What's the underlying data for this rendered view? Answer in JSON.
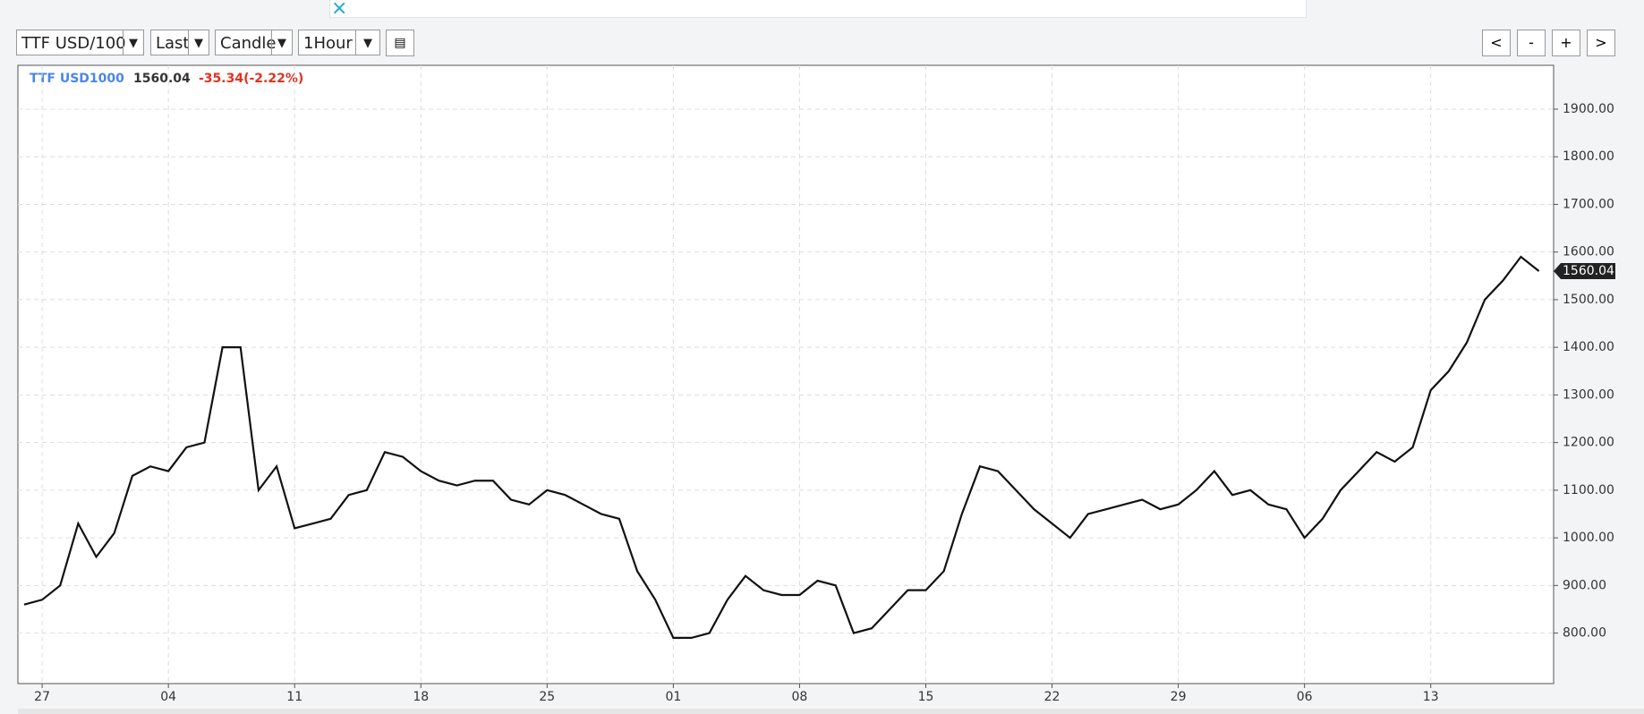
{
  "toolbar": {
    "symbol": "TTF USD/100",
    "price_field": "Last",
    "chart_style": "Candle",
    "interval": "1Hour",
    "nav": [
      "<",
      "-",
      "+",
      ">"
    ]
  },
  "chart_data": {
    "type": "line",
    "symbol": "TTF USD1000",
    "last": 1560.04,
    "change": "-35.34(-2.22%)",
    "color": "#111111",
    "categories": [
      null,
      "27",
      null,
      null,
      null,
      null,
      null,
      null,
      "04",
      null,
      null,
      null,
      null,
      null,
      null,
      "11",
      null,
      null,
      null,
      null,
      null,
      null,
      "18",
      null,
      null,
      null,
      null,
      null,
      null,
      "25",
      null,
      null,
      null,
      null,
      null,
      null,
      "01",
      null,
      null,
      null,
      null,
      null,
      null,
      "08",
      null,
      null,
      null,
      null,
      null,
      null,
      "15",
      null,
      null,
      null,
      null,
      null,
      null,
      "22",
      null,
      null,
      null,
      null,
      null,
      null,
      "29",
      null,
      null,
      null,
      null,
      null,
      null,
      "06",
      null,
      null,
      null,
      null,
      null,
      null,
      "13",
      null,
      null,
      null,
      null,
      null,
      null
    ],
    "values": [
      860,
      870,
      900,
      1030,
      960,
      1010,
      1130,
      1150,
      1140,
      1190,
      1200,
      1400,
      1400,
      1100,
      1150,
      1020,
      1030,
      1040,
      1090,
      1100,
      1180,
      1170,
      1140,
      1120,
      1110,
      1120,
      1120,
      1080,
      1070,
      1100,
      1090,
      1070,
      1050,
      1040,
      930,
      870,
      790,
      790,
      800,
      870,
      920,
      890,
      880,
      880,
      910,
      900,
      800,
      810,
      850,
      890,
      890,
      930,
      1050,
      1150,
      1140,
      1100,
      1060,
      1030,
      1000,
      1050,
      1060,
      1070,
      1080,
      1060,
      1070,
      1100,
      1140,
      1090,
      1100,
      1070,
      1060,
      1000,
      1040,
      1100,
      1140,
      1180,
      1160,
      1190,
      1310,
      1350,
      1410,
      1500,
      1540,
      1590,
      1560.04
    ],
    "ylim": [
      694,
      1992
    ],
    "yticks": [
      {
        "value": 800,
        "label": "800.00"
      },
      {
        "value": 900,
        "label": "900.00"
      },
      {
        "value": 1000,
        "label": "1000.00"
      },
      {
        "value": 1100,
        "label": "1100.00"
      },
      {
        "value": 1200,
        "label": "1200.00"
      },
      {
        "value": 1300,
        "label": "1300.00"
      },
      {
        "value": 1400,
        "label": "1400.00"
      },
      {
        "value": 1500,
        "label": "1500.00"
      },
      {
        "value": 1600,
        "label": "1600.00"
      },
      {
        "value": 1700,
        "label": "1700.00"
      },
      {
        "value": 1800,
        "label": "1800.00"
      },
      {
        "value": 1900,
        "label": "1900.00"
      }
    ],
    "grid": true
  }
}
